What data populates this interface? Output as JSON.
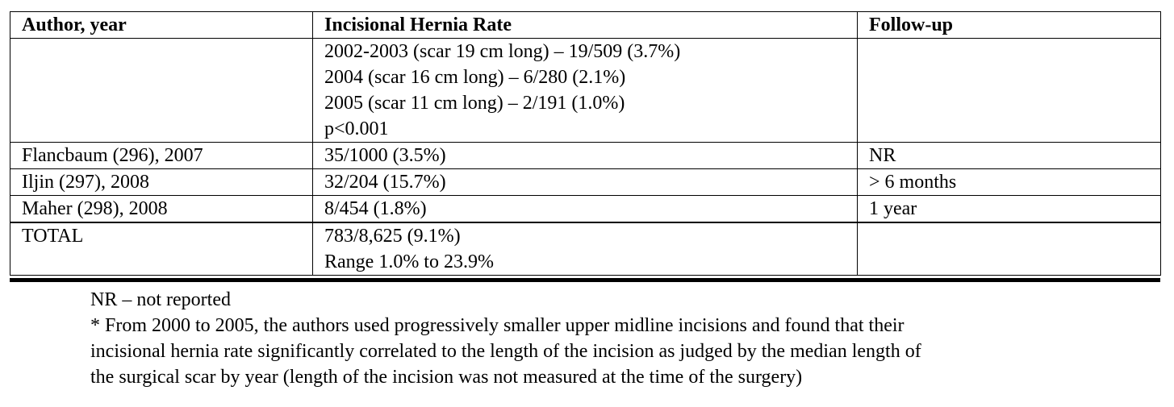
{
  "table": {
    "headers": [
      "Author, year",
      "Incisional Hernia Rate",
      "Follow-up"
    ],
    "rows": [
      {
        "author": "",
        "rate_lines": [
          "2002-2003 (scar 19 cm long) – 19/509 (3.7%)",
          "2004 (scar 16 cm long) – 6/280 (2.1%)",
          "2005 (scar 11 cm long) – 2/191 (1.0%)",
          "p<0.001"
        ],
        "followup": ""
      },
      {
        "author": "Flancbaum (296), 2007",
        "rate_lines": [
          "35/1000 (3.5%)"
        ],
        "followup": "NR"
      },
      {
        "author": "Iljin (297), 2008",
        "rate_lines": [
          "32/204 (15.7%)"
        ],
        "followup": "> 6 months"
      },
      {
        "author": "Maher (298), 2008",
        "rate_lines": [
          "8/454 (1.8%)"
        ],
        "followup": "1 year"
      }
    ],
    "total": {
      "label": "TOTAL",
      "rate_lines": [
        "783/8,625 (9.1%)",
        "Range 1.0% to 23.9%"
      ],
      "followup": ""
    }
  },
  "notes": {
    "nr": "NR – not reported",
    "footnote_lines": [
      "* From 2000 to 2005, the authors used progressively smaller upper midline incisions and found that their",
      "incisional hernia rate significantly correlated to the length of the incision as judged by the median length of",
      "the surgical scar by year (length of the incision was not measured at the time of the surgery)"
    ]
  }
}
